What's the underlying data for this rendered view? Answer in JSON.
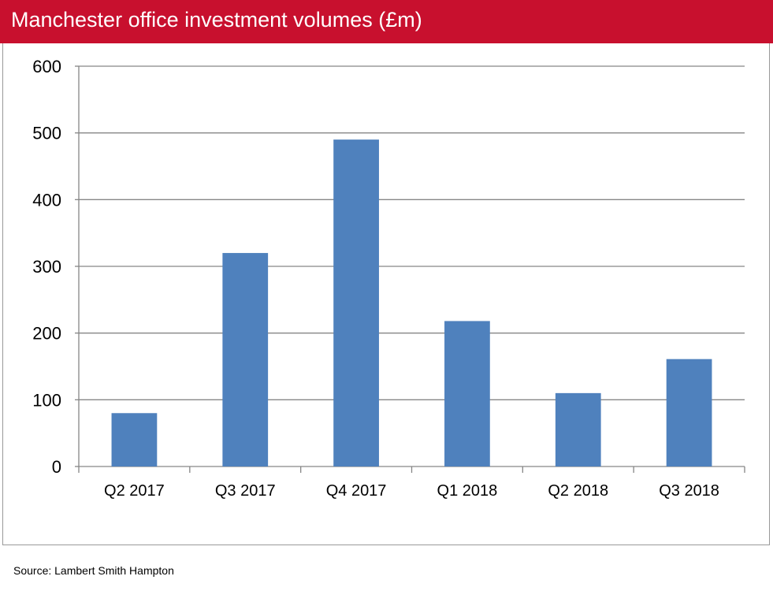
{
  "chart_data": {
    "type": "bar",
    "title": "Manchester office investment volumes (£m)",
    "categories": [
      "Q2 2017",
      "Q3 2017",
      "Q4 2017",
      "Q1 2018",
      "Q2 2018",
      "Q3 2018"
    ],
    "values": [
      80,
      320,
      490,
      218,
      110,
      161
    ],
    "ylim": [
      0,
      600
    ],
    "yticks": [
      0,
      100,
      200,
      300,
      400,
      500,
      600
    ],
    "grid": true,
    "bar_color": "#4f81bd",
    "xlabel": "",
    "ylabel": ""
  },
  "header_color": "#c8102e",
  "source": "Source: Lambert Smith Hampton"
}
